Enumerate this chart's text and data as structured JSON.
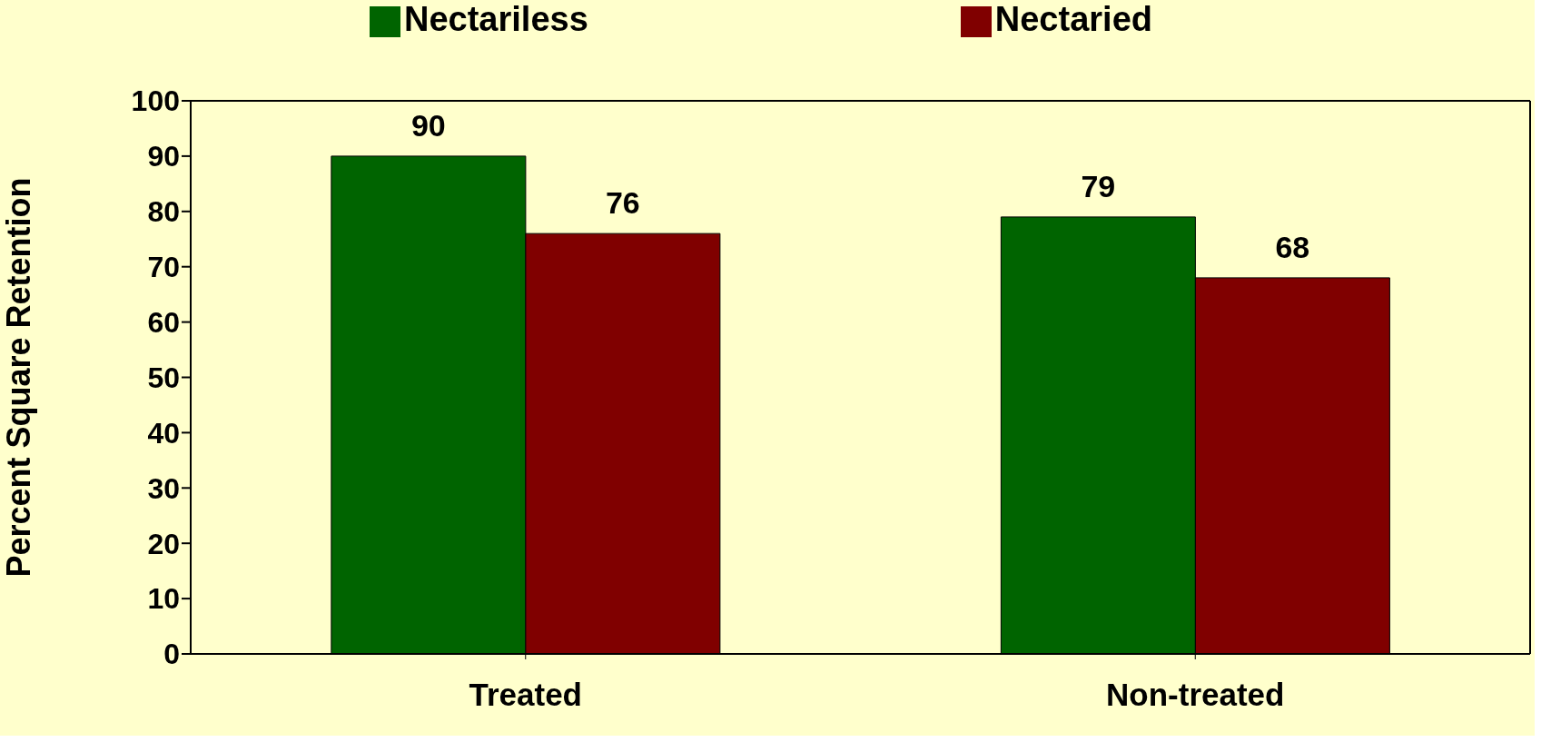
{
  "chart_data": {
    "type": "bar",
    "ylabel": "Percent Square Retention",
    "categories": [
      "Treated",
      "Non-treated"
    ],
    "series": [
      {
        "name": "Nectariless",
        "color": "#006400",
        "values": [
          90,
          79
        ]
      },
      {
        "name": "Nectaried",
        "color": "#800000",
        "values": [
          76,
          68
        ]
      }
    ],
    "ylim": [
      0,
      100
    ],
    "yticks": [
      0,
      10,
      20,
      30,
      40,
      50,
      60,
      70,
      80,
      90,
      100
    ],
    "legend": "top",
    "data_labels": true
  }
}
